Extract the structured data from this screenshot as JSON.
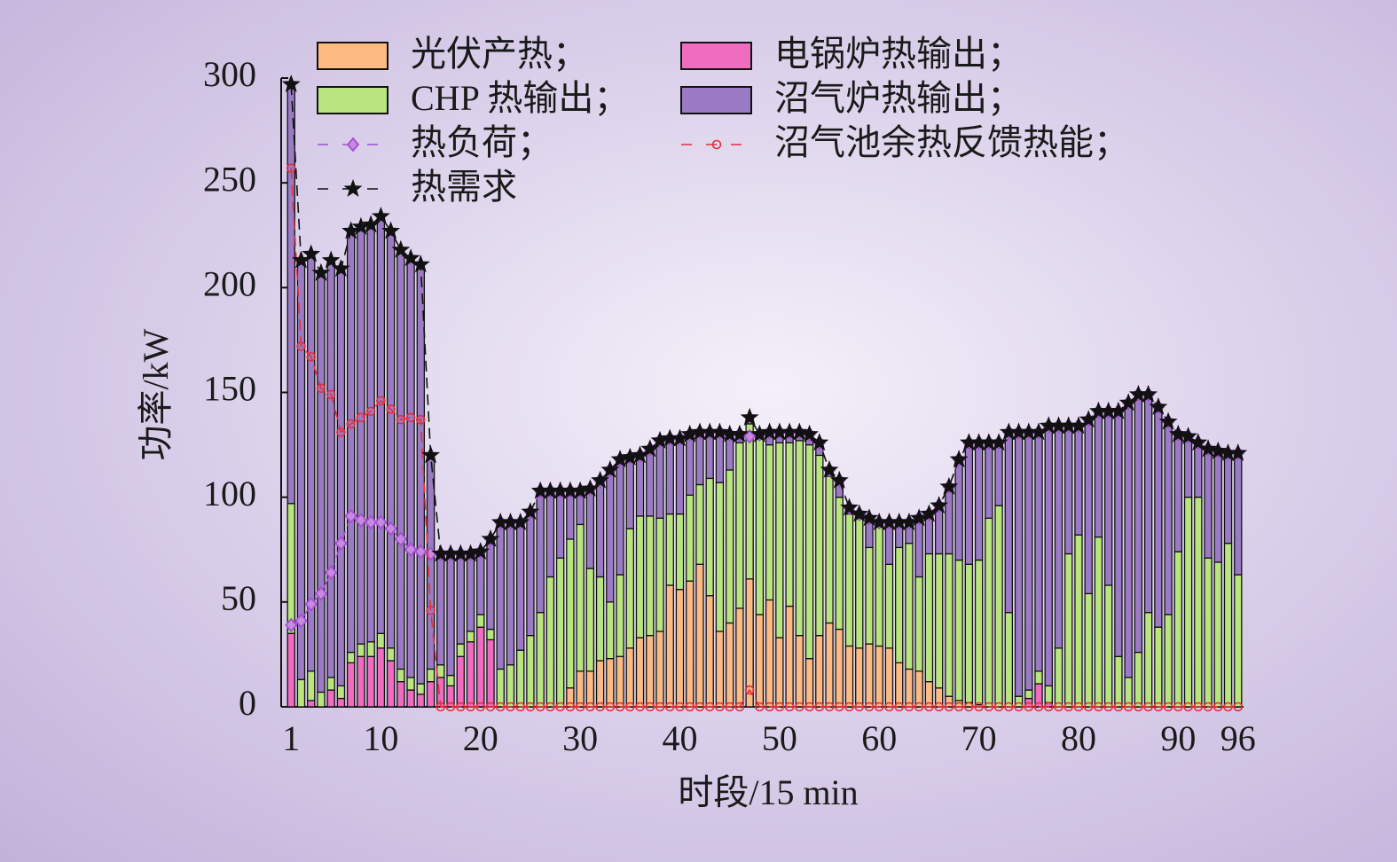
{
  "chart_data": {
    "type": "bar",
    "stacked": true,
    "x_label": "时段/15 min",
    "y_label": "功率/kW",
    "x": [
      1,
      2,
      3,
      4,
      5,
      6,
      7,
      8,
      9,
      10,
      11,
      12,
      13,
      14,
      15,
      16,
      17,
      18,
      19,
      20,
      21,
      22,
      23,
      24,
      25,
      26,
      27,
      28,
      29,
      30,
      31,
      32,
      33,
      34,
      35,
      36,
      37,
      38,
      39,
      40,
      41,
      42,
      43,
      44,
      45,
      46,
      47,
      48,
      49,
      50,
      51,
      52,
      53,
      54,
      55,
      56,
      57,
      58,
      59,
      60,
      61,
      62,
      63,
      64,
      65,
      66,
      67,
      68,
      69,
      70,
      71,
      72,
      73,
      74,
      75,
      76,
      77,
      78,
      79,
      80,
      81,
      82,
      83,
      84,
      85,
      86,
      87,
      88,
      89,
      90,
      91,
      92,
      93,
      94,
      95,
      96
    ],
    "xlim": [
      0,
      97
    ],
    "xticks": [
      1,
      10,
      20,
      30,
      40,
      50,
      60,
      70,
      80,
      90,
      96
    ],
    "ylim": [
      0,
      300
    ],
    "yticks": [
      0,
      50,
      100,
      150,
      200,
      250,
      300
    ],
    "series": [
      {
        "name": "光伏产热；",
        "type": "bar",
        "color": "#fdba82",
        "values": [
          0,
          0,
          0,
          0,
          0,
          0,
          0,
          0,
          0,
          0,
          0,
          0,
          0,
          0,
          0,
          0,
          0,
          0,
          0,
          0,
          0,
          0,
          0,
          0,
          0,
          0,
          0,
          0,
          9,
          17,
          17,
          22,
          23,
          24,
          28,
          33,
          34,
          36,
          58,
          56,
          60,
          68,
          53,
          36,
          40,
          47,
          61,
          44,
          51,
          33,
          48,
          34,
          23,
          34,
          40,
          37,
          29,
          28,
          30,
          29,
          28,
          21,
          18,
          17,
          12,
          9,
          5,
          3,
          2,
          1,
          0,
          0,
          0,
          0,
          0,
          0,
          0,
          0,
          0,
          0,
          0,
          0,
          0,
          0,
          0,
          0,
          0,
          0,
          0,
          0,
          0,
          0,
          0,
          0,
          0,
          0
        ]
      },
      {
        "name": "电锅炉热输出；",
        "type": "bar",
        "color": "#f06cc0",
        "values": [
          35,
          0,
          3,
          0,
          8,
          4,
          21,
          24,
          24,
          28,
          22,
          12,
          8,
          6,
          12,
          14,
          10,
          24,
          31,
          38,
          32,
          0,
          0,
          0,
          0,
          0,
          0,
          0,
          0,
          0,
          0,
          0,
          0,
          0,
          0,
          0,
          0,
          0,
          0,
          0,
          0,
          0,
          0,
          0,
          0,
          0,
          0,
          0,
          0,
          0,
          0,
          0,
          0,
          0,
          0,
          0,
          0,
          0,
          0,
          0,
          0,
          0,
          0,
          0,
          0,
          0,
          0,
          0,
          0,
          0,
          0,
          0,
          0,
          0,
          4,
          11,
          2,
          0,
          0,
          0,
          0,
          0,
          0,
          0,
          0,
          0,
          0,
          0,
          0,
          0,
          0,
          0,
          0,
          0,
          0,
          0
        ]
      },
      {
        "name": "CHP 热输出；",
        "type": "bar",
        "color": "#b9e57f",
        "values": [
          62,
          13,
          14,
          7,
          6,
          6,
          5,
          6,
          7,
          7,
          6,
          6,
          6,
          5,
          6,
          6,
          5,
          6,
          5,
          6,
          5,
          18,
          20,
          27,
          34,
          45,
          62,
          71,
          71,
          70,
          49,
          40,
          27,
          39,
          57,
          58,
          57,
          54,
          34,
          36,
          41,
          38,
          56,
          71,
          73,
          79,
          74,
          84,
          74,
          93,
          78,
          93,
          102,
          86,
          70,
          63,
          63,
          62,
          46,
          57,
          40,
          55,
          60,
          45,
          61,
          64,
          68,
          67,
          66,
          69,
          90,
          96,
          45,
          5,
          4,
          6,
          8,
          28,
          73,
          82,
          54,
          81,
          58,
          24,
          14,
          26,
          45,
          38,
          44,
          74,
          100,
          100,
          71,
          69,
          78,
          63
        ]
      },
      {
        "name": "沼气炉热输出；",
        "type": "bar",
        "color": "#9b7cc4",
        "values": [
          200,
          200,
          199,
          200,
          199,
          199,
          201,
          199,
          199,
          199,
          199,
          200,
          200,
          200,
          102,
          53,
          58,
          43,
          37,
          30,
          43,
          70,
          68,
          61,
          59,
          58,
          41,
          32,
          23,
          16,
          38,
          46,
          63,
          55,
          34,
          29,
          32,
          37,
          36,
          36,
          29,
          25,
          22,
          24,
          17,
          4,
          3,
          2,
          6,
          5,
          5,
          4,
          5,
          6,
          3,
          8,
          3,
          2,
          14,
          2,
          20,
          12,
          10,
          28,
          19,
          23,
          32,
          48,
          58,
          56,
          36,
          30,
          86,
          126,
          123,
          114,
          124,
          106,
          61,
          52,
          83,
          60,
          83,
          117,
          131,
          123,
          104,
          105,
          92,
          56,
          29,
          26,
          52,
          53,
          43,
          58
        ]
      },
      {
        "name": "热负荷；",
        "type": "line",
        "marker": "diamond",
        "color": "#a64fd0",
        "values": [
          39,
          41,
          49,
          54,
          64,
          78,
          91,
          89,
          88,
          88,
          85,
          80,
          75,
          74,
          73,
          73,
          73,
          73,
          73,
          74,
          80,
          88,
          88,
          88,
          93,
          103,
          103,
          103,
          103,
          103,
          104,
          108,
          113,
          118,
          119,
          120,
          123,
          127,
          128,
          128,
          130,
          131,
          131,
          131,
          130,
          130,
          129,
          130,
          131,
          131,
          131,
          131,
          130,
          126,
          113,
          108,
          95,
          92,
          90,
          88,
          88,
          88,
          88,
          90,
          92,
          96,
          105,
          118,
          126,
          126,
          126,
          126,
          131,
          131,
          131,
          131,
          134,
          134,
          134,
          134,
          137,
          141,
          141,
          141,
          145,
          149,
          149,
          143,
          136,
          130,
          129,
          126,
          123,
          122,
          121,
          121
        ]
      },
      {
        "name": "沼气池余热反馈热能；",
        "type": "line",
        "marker": "circle",
        "color": "#e3303c",
        "values": [
          257,
          172,
          167,
          152,
          149,
          131,
          135,
          138,
          141,
          146,
          142,
          137,
          138,
          137,
          46,
          0,
          0,
          0,
          0,
          0,
          0,
          0,
          0,
          0,
          0,
          0,
          0,
          0,
          0,
          0,
          0,
          0,
          0,
          0,
          0,
          0,
          0,
          0,
          0,
          0,
          0,
          0,
          0,
          0,
          0,
          0,
          8,
          0,
          0,
          0,
          0,
          0,
          0,
          0,
          0,
          0,
          0,
          0,
          0,
          0,
          0,
          0,
          0,
          0,
          0,
          0,
          0,
          0,
          0,
          0,
          0,
          0,
          0,
          0,
          0,
          0,
          0,
          0,
          0,
          0,
          0,
          0,
          0,
          0,
          0,
          0,
          0,
          0,
          0,
          0,
          0,
          0,
          0,
          0,
          0,
          0
        ]
      },
      {
        "name": "热需求",
        "type": "line",
        "marker": "star",
        "color": "#111111",
        "values": [
          297,
          213,
          216,
          207,
          213,
          209,
          227,
          229,
          230,
          234,
          227,
          218,
          214,
          211,
          120,
          73,
          73,
          73,
          73,
          74,
          80,
          88,
          88,
          88,
          93,
          103,
          103,
          103,
          103,
          103,
          104,
          108,
          113,
          118,
          119,
          120,
          123,
          127,
          128,
          128,
          130,
          131,
          131,
          131,
          130,
          130,
          138,
          130,
          131,
          131,
          131,
          131,
          130,
          126,
          113,
          108,
          95,
          92,
          90,
          88,
          88,
          88,
          88,
          90,
          92,
          96,
          105,
          118,
          126,
          126,
          126,
          126,
          131,
          131,
          131,
          131,
          134,
          134,
          134,
          134,
          137,
          141,
          141,
          141,
          145,
          149,
          149,
          143,
          136,
          130,
          129,
          126,
          123,
          122,
          121,
          121
        ]
      }
    ]
  }
}
